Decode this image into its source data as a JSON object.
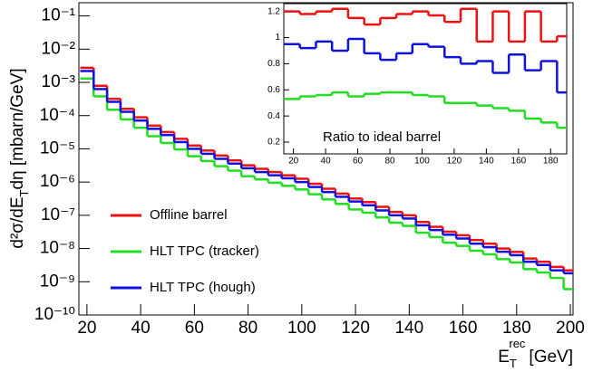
{
  "chart_data": [
    {
      "type": "histogram",
      "xlabel": [
        "E",
        "T",
        "rec",
        "[GeV]"
      ],
      "ylabel": [
        "d²σ/dE",
        "T",
        "dη [mbarn/GeV]"
      ],
      "bins": [
        17.5,
        22.5,
        27.5,
        32.5,
        37.5,
        42.5,
        47.5,
        52.5,
        57.5,
        62.5,
        67.5,
        72.5,
        77.5,
        82.5,
        87.5,
        92.5,
        97.5,
        102.5,
        107.5,
        112.5,
        117.5,
        122.5,
        127.5,
        132.5,
        137.5,
        142.5,
        147.5,
        152.5,
        157.5,
        162.5,
        167.5,
        172.5,
        177.5,
        182.5,
        187.5,
        192.5,
        197.5,
        201
      ],
      "xlim": [
        17,
        201
      ],
      "xticks": [
        20,
        40,
        60,
        80,
        100,
        120,
        140,
        160,
        180,
        200
      ],
      "log_y": true,
      "ylim": [
        1e-10,
        0.25
      ],
      "yticks": [
        {
          "value": 1e-10,
          "label": "10⁻¹⁰"
        },
        {
          "value": 1e-09,
          "label": "10⁻⁹"
        },
        {
          "value": 1e-08,
          "label": "10⁻⁸"
        },
        {
          "value": 1e-07,
          "label": "10⁻⁷"
        },
        {
          "value": 1e-06,
          "label": "10⁻⁶"
        },
        {
          "value": 1e-05,
          "label": "10⁻⁵"
        },
        {
          "value": 0.0001,
          "label": "10⁻⁴"
        },
        {
          "value": 0.001,
          "label": "10⁻³"
        },
        {
          "value": 0.01,
          "label": "10⁻²"
        },
        {
          "value": 0.1,
          "label": "10⁻¹"
        }
      ],
      "series": [
        {
          "name": "Offline barrel",
          "color": "#ee1111",
          "values": [
            0.00275,
            0.00079,
            0.00032,
            0.00016,
            8.9e-05,
            5e-05,
            3.2e-05,
            2e-05,
            1.26e-05,
            8.9e-06,
            6.3e-06,
            4.5e-06,
            3.2e-06,
            2.5e-06,
            2e-06,
            1.6e-06,
            1.26e-06,
            8.9e-07,
            6.3e-07,
            4.5e-07,
            3.2e-07,
            2.5e-07,
            1.8e-07,
            1.26e-07,
            1e-07,
            6.3e-08,
            4.5e-08,
            3.2e-08,
            2.5e-08,
            1.8e-08,
            1.4e-08,
            1e-08,
            7.9e-09,
            5e-09,
            4e-09,
            2.8e-09,
            2.2e-09
          ]
        },
        {
          "name": "HLT TPC (tracker)",
          "color": "#22dd22",
          "values": [
            0.0013,
            0.00038,
            0.00015,
            7.7e-05,
            4.3e-05,
            2.4e-05,
            1.5e-05,
            9.6e-06,
            6e-06,
            4.3e-06,
            3e-06,
            2.2e-06,
            1.5e-06,
            1.2e-06,
            9.6e-07,
            7.7e-07,
            6e-07,
            4.3e-07,
            3e-07,
            2.2e-07,
            1.5e-07,
            1.2e-07,
            8.6e-08,
            6e-08,
            4.8e-08,
            3e-08,
            2.2e-08,
            1.5e-08,
            1.2e-08,
            8.6e-09,
            6.7e-09,
            4.8e-09,
            3.8e-09,
            2.4e-09,
            1.9e-09,
            1.3e-09,
            6e-10
          ]
        },
        {
          "name": "HLT TPC (hough)",
          "color": "#1111dd",
          "values": [
            0.0022,
            0.00063,
            0.00026,
            0.00013,
            7.1e-05,
            4e-05,
            2.6e-05,
            1.6e-05,
            1e-05,
            7.1e-06,
            5e-06,
            3.6e-06,
            2.6e-06,
            2e-06,
            1.6e-06,
            1.3e-06,
            1e-06,
            7.1e-07,
            5e-07,
            3.6e-07,
            2.6e-07,
            2e-07,
            1.4e-07,
            1e-07,
            8e-08,
            5e-08,
            3.6e-08,
            2.6e-08,
            2e-08,
            1.4e-08,
            1.1e-08,
            8e-09,
            6.3e-09,
            4e-09,
            3.2e-09,
            2.2e-09,
            1.8e-09
          ]
        }
      ]
    },
    {
      "type": "histogram",
      "annotation": "Ratio to ideal barrel",
      "bins": [
        14,
        24,
        34,
        44,
        54,
        64,
        74,
        84,
        94,
        104,
        114,
        124,
        134,
        144,
        154,
        164,
        174,
        184,
        190
      ],
      "xlim": [
        14,
        190
      ],
      "xticks": [
        20,
        40,
        60,
        80,
        100,
        120,
        140,
        160,
        180
      ],
      "ylim": [
        0.11,
        1.26
      ],
      "yticks": [
        0.2,
        0.4,
        0.6,
        0.8,
        1,
        1.2
      ],
      "series": [
        {
          "color": "#ee1111",
          "values": [
            1.2,
            1.18,
            1.2,
            1.22,
            1.15,
            1.1,
            1.15,
            1.18,
            1.2,
            1.17,
            1.12,
            1.22,
            0.97,
            1.2,
            0.97,
            1.2,
            0.97,
            1.01
          ]
        },
        {
          "color": "#1111dd",
          "values": [
            0.95,
            0.92,
            0.97,
            0.9,
            0.99,
            0.88,
            0.83,
            0.88,
            0.95,
            0.93,
            0.85,
            0.8,
            0.82,
            0.73,
            0.87,
            0.75,
            0.82,
            0.58
          ]
        },
        {
          "color": "#22dd22",
          "values": [
            0.53,
            0.55,
            0.56,
            0.58,
            0.55,
            0.57,
            0.58,
            0.58,
            0.56,
            0.55,
            0.5,
            0.5,
            0.48,
            0.46,
            0.44,
            0.38,
            0.35,
            0.31
          ]
        }
      ]
    }
  ]
}
